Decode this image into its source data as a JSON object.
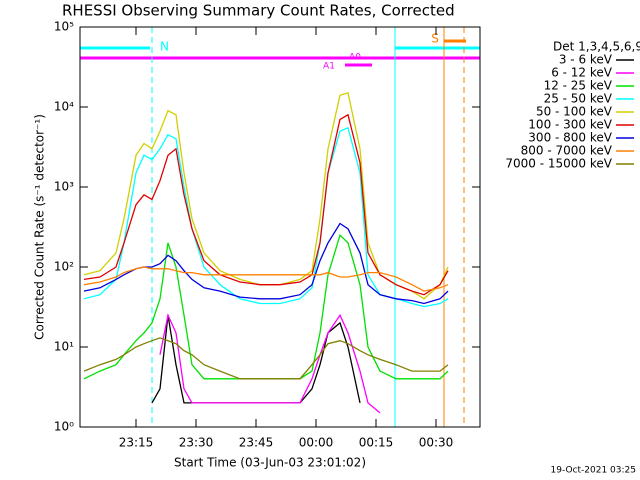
{
  "chart_data": {
    "type": "line",
    "title": "RHESSI Observing Summary Count Rates, Corrected",
    "x_label": "Start Time (03-Jun-03 23:01:02)",
    "y_label": "Corrected Count Rate (s⁻¹ detector⁻¹)",
    "legend_title": "Det 1,3,4,5,6,9",
    "footer": "19-Oct-2021 03:25",
    "annotations": [
      "N",
      "A0",
      "A1",
      "S"
    ],
    "log_y": true,
    "xlim": [
      1,
      101
    ],
    "xticks": [
      {
        "value": 15,
        "label": "23:15"
      },
      {
        "value": 30,
        "label": "23:30"
      },
      {
        "value": 45,
        "label": "23:45"
      },
      {
        "value": 60,
        "label": "00:00"
      },
      {
        "value": 75,
        "label": "00:15"
      },
      {
        "value": 90,
        "label": "00:30"
      }
    ],
    "ylim": [
      1,
      100000
    ],
    "yticks": [
      {
        "value": 1,
        "label": "10⁰"
      },
      {
        "value": 10,
        "label": "10¹"
      },
      {
        "value": 100,
        "label": "10²"
      },
      {
        "value": 1000,
        "label": "10³"
      },
      {
        "value": 10000,
        "label": "10⁴"
      },
      {
        "value": 100000,
        "label": "10⁵"
      }
    ],
    "x": [
      2,
      6,
      10,
      12,
      15,
      17,
      19,
      21,
      23,
      25,
      27,
      29,
      32,
      36,
      41,
      46,
      51,
      56,
      59,
      61,
      63,
      66,
      68,
      71,
      73,
      76,
      80,
      84,
      87,
      91,
      93
    ],
    "series": [
      {
        "name": "3 - 6 keV",
        "color": "#000000",
        "values": [
          null,
          null,
          null,
          null,
          null,
          null,
          2,
          3,
          25,
          6,
          2,
          2,
          2,
          2,
          2,
          2,
          2,
          2,
          3,
          6,
          15,
          20,
          10,
          2,
          null,
          null,
          null,
          null,
          null,
          null,
          null
        ]
      },
      {
        "name": "6 - 12 keV",
        "color": "#ff00ff",
        "values": [
          null,
          null,
          null,
          null,
          null,
          null,
          null,
          8,
          25,
          15,
          3,
          2,
          2,
          2,
          2,
          2,
          2,
          2,
          4,
          8,
          15,
          25,
          15,
          5,
          2,
          1.5,
          null,
          null,
          null,
          null,
          null
        ]
      },
      {
        "name": "12 - 25 keV",
        "color": "#00e000",
        "values": [
          4,
          5,
          6,
          8,
          12,
          15,
          20,
          40,
          200,
          100,
          25,
          6,
          4,
          4,
          4,
          4,
          4,
          4,
          5,
          15,
          80,
          250,
          200,
          60,
          10,
          5,
          4,
          4,
          4,
          4,
          5
        ]
      },
      {
        "name": "25 - 50 keV",
        "color": "#00ffff",
        "values": [
          40,
          45,
          70,
          200,
          1500,
          2500,
          2200,
          3000,
          4500,
          4000,
          1000,
          300,
          100,
          60,
          40,
          35,
          35,
          40,
          55,
          200,
          1500,
          5000,
          5500,
          1500,
          80,
          45,
          40,
          35,
          32,
          35,
          40
        ]
      },
      {
        "name": "50 - 100 keV",
        "color": "#d0d000",
        "values": [
          80,
          90,
          150,
          400,
          2500,
          3500,
          3000,
          5000,
          9000,
          8000,
          1500,
          400,
          150,
          90,
          70,
          60,
          60,
          70,
          90,
          400,
          3000,
          14000,
          15000,
          3000,
          200,
          80,
          60,
          50,
          40,
          60,
          100
        ]
      },
      {
        "name": "100 - 300 keV",
        "color": "#e00000",
        "values": [
          70,
          75,
          100,
          200,
          600,
          800,
          700,
          1200,
          2500,
          3000,
          800,
          300,
          120,
          80,
          65,
          60,
          60,
          65,
          80,
          200,
          1500,
          7000,
          8000,
          2000,
          150,
          80,
          60,
          50,
          45,
          60,
          90
        ]
      },
      {
        "name": "300 - 800 keV",
        "color": "#0000e0",
        "values": [
          50,
          55,
          70,
          80,
          95,
          100,
          100,
          110,
          140,
          120,
          90,
          70,
          55,
          50,
          42,
          40,
          40,
          45,
          60,
          120,
          200,
          350,
          300,
          150,
          60,
          45,
          40,
          38,
          35,
          40,
          50
        ]
      },
      {
        "name": "800 - 7000 keV",
        "color": "#ff8000",
        "values": [
          60,
          65,
          75,
          85,
          95,
          100,
          95,
          95,
          95,
          90,
          85,
          85,
          80,
          80,
          80,
          80,
          80,
          80,
          80,
          80,
          85,
          75,
          75,
          80,
          85,
          85,
          75,
          60,
          50,
          55,
          60
        ]
      },
      {
        "name": "7000 - 15000 keV",
        "color": "#808000",
        "values": [
          5,
          6,
          7,
          8,
          10,
          11,
          12,
          13,
          12,
          11,
          9,
          8,
          6,
          5,
          4,
          4,
          4,
          4,
          6,
          8,
          11,
          12,
          11,
          9,
          8,
          7,
          6,
          5,
          5,
          5,
          6
        ]
      }
    ]
  }
}
